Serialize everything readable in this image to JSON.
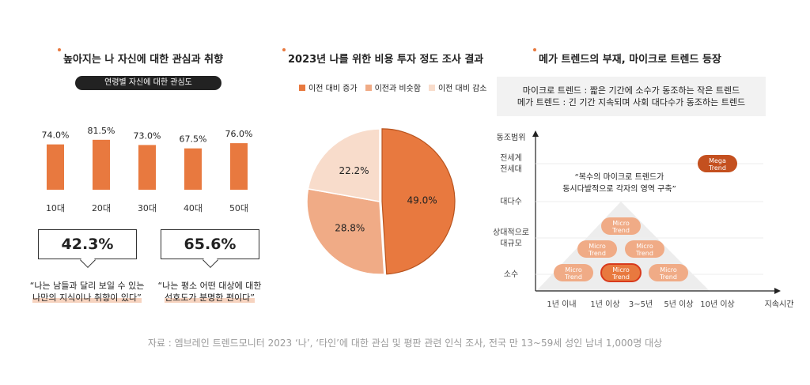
{
  "panels": {
    "left": {
      "title": "높아지는 나 자신에 대한 관심과 취향",
      "subtitle": "연령별 자신에 대한 관심도",
      "stats": [
        {
          "value": "42.3%",
          "quote_line1": "“나는 남들과 달리 보일 수 있는",
          "quote_line2": "나만의 지식이나 취향이 있다”"
        },
        {
          "value": "65.6%",
          "quote_line1": "“나는 평소 어떤 대상에 대한",
          "quote_line2": "선호도가 분명한 편이다”"
        }
      ]
    },
    "middle": {
      "title": "2023년 나를 위한 비용 투자 정도 조사 결과"
    },
    "right": {
      "title": "메가 트렌드의 부재, 마이크로 트렌드 등장",
      "definitions": [
        "마이크로 트렌드 : 짧은 기간에 소수가 동조하는 작은 트렌드",
        "메가 트렌드 : 긴 기간 지속되며 사회 대다수가 동조하는 트렌드"
      ]
    }
  },
  "chart_data": [
    {
      "type": "bar",
      "categories": [
        "10대",
        "20대",
        "30대",
        "40대",
        "50대"
      ],
      "values": [
        74.0,
        81.5,
        73.0,
        67.5,
        76.0
      ],
      "value_labels": [
        "74.0%",
        "81.5%",
        "73.0%",
        "67.5%",
        "76.0%"
      ],
      "color": "#e8793f",
      "ylim": [
        0,
        100
      ]
    },
    {
      "type": "pie",
      "labels": [
        "이전 대비 증가",
        "이전과 비슷함",
        "이전 대비 감소"
      ],
      "values": [
        49.0,
        28.8,
        22.2
      ],
      "value_labels": [
        "49.0%",
        "28.8%",
        "22.2%"
      ],
      "colors": [
        "#e8793f",
        "#f0ab86",
        "#f8dccb"
      ],
      "legend_position": "top"
    },
    {
      "type": "scatter",
      "y_axis_title": "동조범위",
      "x_axis_title": "지속시간",
      "y_categories": [
        "소수",
        "상대적으로 대규모",
        "대다수",
        "전세계 전세대"
      ],
      "y_category_lines": [
        [
          "소수"
        ],
        [
          "상대적으로",
          "대규모"
        ],
        [
          "대다수"
        ],
        [
          "전세계",
          "전세대"
        ]
      ],
      "x_categories": [
        "1년 이내",
        "1년 이상",
        "3~5년",
        "5년 이상",
        "10년 이상"
      ],
      "annotation_line1": "“복수의 마이크로 트렌드가",
      "annotation_line2": "동시다발적으로 각자의 영역 구축”",
      "points": [
        {
          "label_line1": "Micro",
          "label_line2": "Trend",
          "x": "1년 이내",
          "y": "소수",
          "highlight": false
        },
        {
          "label_line1": "Micro",
          "label_line2": "Trend",
          "x": "1년 이상",
          "y": "소수",
          "highlight": true
        },
        {
          "label_line1": "Micro",
          "label_line2": "Trend",
          "x": "3~5년",
          "y": "소수",
          "highlight": false
        },
        {
          "label_line1": "Micro",
          "label_line2": "Trend",
          "x": "1년 이내",
          "y": "상대적으로 대규모",
          "highlight": false
        },
        {
          "label_line1": "Micro",
          "label_line2": "Trend",
          "x": "3~5년",
          "y": "상대적으로 대규모",
          "highlight": false
        },
        {
          "label_line1": "Micro",
          "label_line2": "Trend",
          "x": "1년 이상",
          "y": "상대적으로 대규모",
          "highlight": false
        },
        {
          "label_line1": "Mega",
          "label_line2": "Trend",
          "x": "10년 이상",
          "y": "전세계 전세대",
          "highlight": false
        }
      ],
      "colors": {
        "micro": "#f0ab86",
        "highlight": "#e8793f",
        "mega": "#c4501f",
        "triangle": "#ededed"
      }
    }
  ],
  "source": "자료 : 엠브레인 트렌드모니터 2023 ‘나’, ‘타인’에 대한 관심 및 평판 관련 인식 조사, 전국 만 13~59세 성인 남녀 1,000명 대상"
}
